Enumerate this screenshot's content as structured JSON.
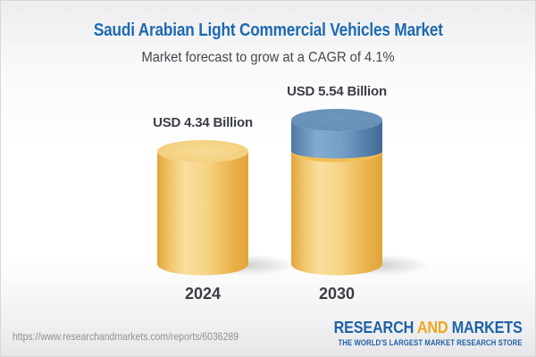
{
  "header": {
    "title": "Saudi Arabian Light Commercial Vehicles Market",
    "subtitle": "Market forecast to grow at a CAGR of 4.1%"
  },
  "chart_data": {
    "type": "bar",
    "variant": "3d_cylinder_infographic",
    "categories": [
      "2024",
      "2030"
    ],
    "values": [
      4.34,
      5.54
    ],
    "value_labels": [
      "USD 4.34 Billion",
      "USD 5.54 Billion"
    ],
    "unit": "USD Billion",
    "cagr_percent": 4.1,
    "title": "Saudi Arabian Light Commercial Vehicles Market",
    "subtitle": "Market forecast to grow at a CAGR of 4.1%",
    "xlabel": "",
    "ylabel": "",
    "axes_visible": false,
    "gridlines": false,
    "legend": false,
    "bar_color_base": "#F2C868",
    "bar_color_growth_segment": "#5E88B2",
    "growth_segment": {
      "from": 4.34,
      "to": 5.54
    }
  },
  "footer": {
    "url": "https://www.researchandmarkets.com/reports/6036289",
    "logo": {
      "word1": "RESEARCH",
      "word2": "AND",
      "word3": "MARKETS",
      "tagline": "THE WORLD'S LARGEST MARKET RESEARCH STORE"
    }
  },
  "colors": {
    "title_blue": "#1D69B0",
    "subtitle_gray": "#43474D",
    "label_dark": "#3A3E45",
    "url_gray": "#8E9091",
    "logo_blue": "#1F62A5",
    "logo_gold": "#EFA81D",
    "cylinder_yellow": "#F2C868",
    "cylinder_blue": "#5E88B2"
  }
}
